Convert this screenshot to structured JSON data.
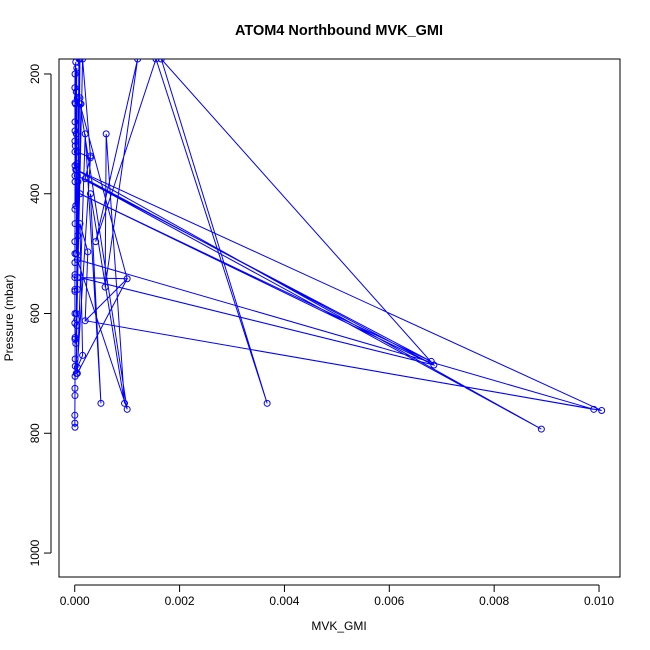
{
  "chart_data": {
    "type": "line",
    "title": "ATOM4 Northbound MVK_GMI",
    "xlabel": "MVK_GMI",
    "ylabel": "Pressure (mbar)",
    "xlim": [
      -0.0003,
      0.0104
    ],
    "ylim": [
      1040,
      175
    ],
    "y_reversed": true,
    "grid": false,
    "x_ticks": [
      0.0,
      0.002,
      0.004,
      0.006,
      0.008,
      0.01
    ],
    "x_tick_labels": [
      "0.000",
      "0.002",
      "0.004",
      "0.006",
      "0.008",
      "0.010"
    ],
    "y_ticks": [
      200,
      400,
      600,
      800,
      1000
    ],
    "y_tick_labels": [
      "200",
      "400",
      "600",
      "800",
      "1000"
    ],
    "series_color": "#0000ff",
    "series": [
      {
        "marker": "open-circle",
        "line": true,
        "points": [
          [
            5e-06,
            790
          ],
          [
            3e-06,
            783
          ],
          [
            2e-06,
            770
          ],
          [
            5e-06,
            737
          ],
          [
            4e-06,
            725
          ],
          [
            6e-06,
            705
          ],
          [
            1e-05,
            688
          ],
          [
            8e-06,
            676
          ],
          [
            5e-06,
            643
          ],
          [
            7e-06,
            640
          ],
          [
            3e-06,
            616
          ],
          [
            5e-06,
            600
          ],
          [
            3e-06,
            563
          ],
          [
            4e-06,
            560
          ],
          [
            3e-06,
            540
          ],
          [
            6e-06,
            535
          ],
          [
            4e-06,
            515
          ],
          [
            5e-06,
            500
          ],
          [
            3e-06,
            480
          ],
          [
            7e-06,
            450
          ],
          [
            4e-06,
            426
          ],
          [
            6e-06,
            380
          ],
          [
            5e-06,
            370
          ],
          [
            6e-06,
            353
          ],
          [
            5e-06,
            330
          ],
          [
            4e-06,
            312
          ],
          [
            6e-06,
            295
          ],
          [
            5e-06,
            280
          ],
          [
            4e-06,
            248
          ],
          [
            3e-06,
            223
          ],
          [
            6e-06,
            200
          ],
          [
            2e-05,
            180
          ],
          [
            1.5e-05,
            250
          ],
          [
            3e-05,
            230
          ],
          [
            1e-05,
            320
          ],
          [
            4e-05,
            190
          ],
          [
            2e-05,
            360
          ],
          [
            3e-05,
            300
          ],
          [
            5e-05,
            240
          ],
          [
            2e-05,
            420
          ],
          [
            4e-05,
            350
          ],
          [
            3e-05,
            500
          ],
          [
            6e-05,
            380
          ],
          [
            3e-05,
            600
          ],
          [
            5e-05,
            560
          ],
          [
            2e-05,
            650
          ],
          [
            4e-05,
            620
          ],
          [
            8e-05,
            175
          ],
          [
            3e-05,
            700
          ],
          [
            6e-05,
            470
          ],
          [
            0.0001,
            175
          ],
          [
            5e-05,
            540
          ],
          [
            0.00012,
            250
          ],
          [
            4e-05,
            610
          ],
          [
            0.00015,
            175
          ],
          [
            0.0003,
            337
          ],
          [
            0.0002,
            375
          ],
          [
            0.00685,
            686
          ],
          [
            0.0001,
            400
          ],
          [
            0.0068,
            680
          ],
          [
            5e-05,
            370
          ],
          [
            0.0089,
            793
          ],
          [
            3e-05,
            360
          ],
          [
            0.01005,
            762
          ],
          [
            0.0002,
            612
          ],
          [
            0.0099,
            760
          ],
          [
            5e-05,
            510
          ],
          [
            0.001,
            760
          ],
          [
            0.0001,
            250
          ],
          [
            0.001,
            542
          ],
          [
            5e-05,
            700
          ],
          [
            0.0002,
            300
          ],
          [
            0.0005,
            750
          ],
          [
            0.0003,
            400
          ],
          [
            0.00095,
            750
          ],
          [
            0.0006,
            300
          ],
          [
            0.00058,
            556
          ],
          [
            0.0012,
            175
          ],
          [
            0.0004,
            480
          ],
          [
            0.00155,
            175
          ],
          [
            0.00367,
            750
          ],
          [
            0.00165,
            175
          ],
          [
            0.00685,
            686
          ],
          [
            0.0001,
            540
          ],
          [
            0.001,
            542
          ],
          [
            0.0002,
            612
          ],
          [
            0.00025,
            497
          ],
          [
            0.0001,
            450
          ],
          [
            0.00015,
            670
          ],
          [
            5e-05,
            690
          ],
          [
            0.0003,
            340
          ],
          [
            5e-05,
            330
          ]
        ]
      }
    ],
    "marker_points": [
      [
        0.0003,
        337
      ],
      [
        0.00025,
        497
      ],
      [
        0.001,
        542
      ],
      [
        0.00058,
        556
      ],
      [
        0.0002,
        612
      ],
      [
        0.00015,
        670
      ],
      [
        0.00685,
        686
      ],
      [
        0.0005,
        750
      ],
      [
        0.001,
        760
      ],
      [
        0.00367,
        750
      ],
      [
        0.0089,
        793
      ],
      [
        0.01005,
        762
      ],
      [
        0.0001,
        240
      ]
    ]
  }
}
